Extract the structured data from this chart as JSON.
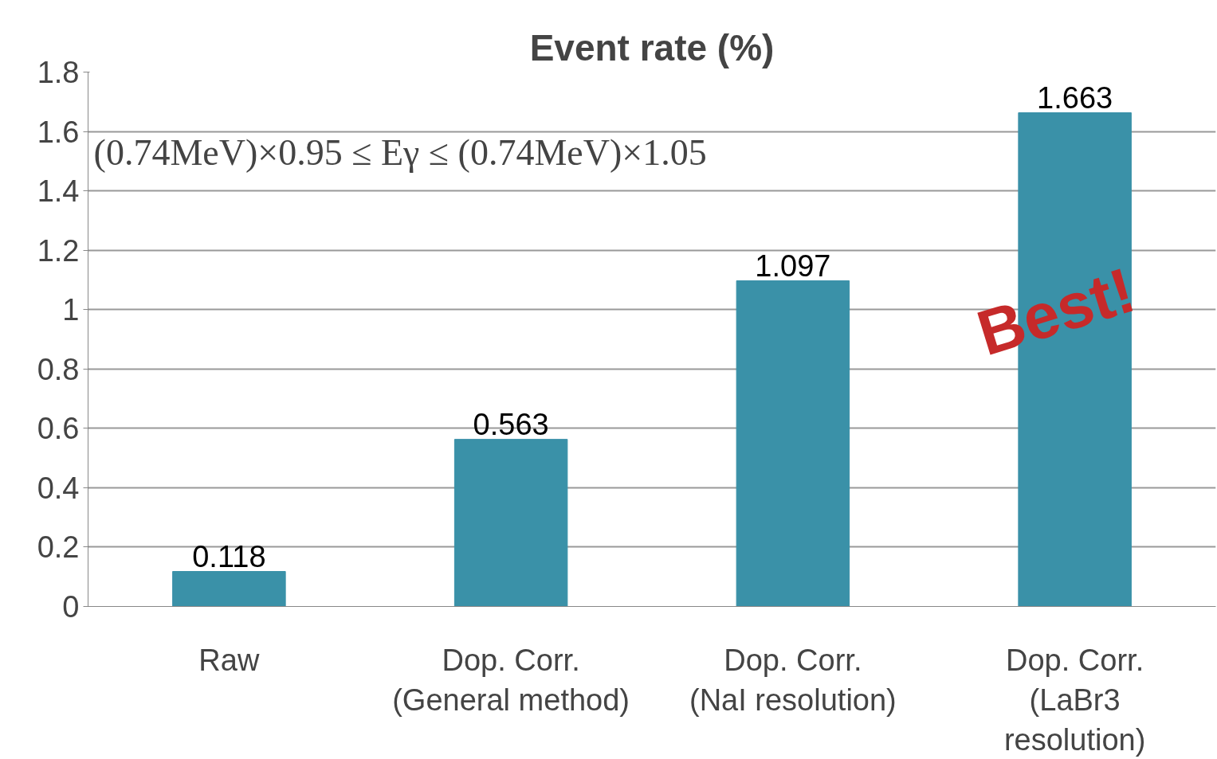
{
  "chart_data": {
    "type": "bar",
    "title": "Event rate (%)",
    "categories": [
      "Raw",
      "Dop. Corr.\n(General method)",
      "Dop. Corr.\n(NaI resolution)",
      "Dop. Corr.\n(LaBr3\nresolution)"
    ],
    "values": [
      0.118,
      0.563,
      1.097,
      1.663
    ],
    "color": "#3a91a8",
    "ylim": [
      0,
      1.8
    ],
    "yticks": [
      0,
      0.2,
      0.4,
      0.6,
      0.8,
      {
        "value": 1,
        "label": "1"
      },
      1.2,
      1.4,
      1.6,
      1.8
    ],
    "grid": "y",
    "data_labels": true,
    "annotations": [
      "(0.74MeV)×0.95 ≤ Eγ ≤ (0.74MeV)×1.05",
      "Best!"
    ]
  }
}
